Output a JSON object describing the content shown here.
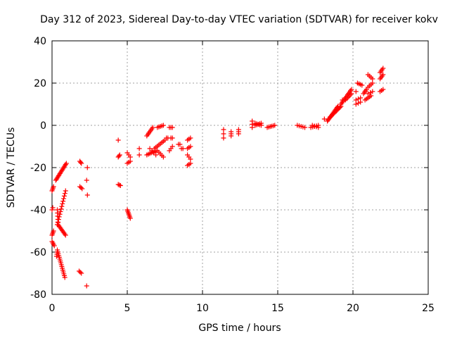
{
  "chart_data": {
    "type": "scatter",
    "title": "Day 312 of 2023, Sidereal Day-to-day VTEC variation (SDTVAR) for receiver kokv",
    "xlabel": "GPS time / hours",
    "ylabel": "SDTVAR / TECUs",
    "xlim": [
      0,
      25
    ],
    "ylim": [
      -80,
      40
    ],
    "xticks": [
      "0",
      "5",
      "10",
      "15",
      "20",
      "25"
    ],
    "xtick_values": [
      0,
      5,
      10,
      15,
      20,
      25
    ],
    "yticks": [
      "-80",
      "-60",
      "-40",
      "-20",
      "0",
      "20",
      "40"
    ],
    "ytick_values": [
      -80,
      -60,
      -40,
      -20,
      0,
      20,
      40
    ],
    "grid": true,
    "marker": "+",
    "color": "#ff0000",
    "series": [
      {
        "name": "SDTVAR",
        "segments": [
          {
            "x0": 0.0,
            "y0": -31,
            "x1": 0.1,
            "y1": -29,
            "n": 4
          },
          {
            "x0": 0.0,
            "y0": -40,
            "x1": 0.05,
            "y1": -39,
            "n": 2
          },
          {
            "x0": 0.0,
            "y0": -52,
            "x1": 0.1,
            "y1": -50,
            "n": 4
          },
          {
            "x0": 0.0,
            "y0": -55,
            "x1": 0.15,
            "y1": -57,
            "n": 4
          },
          {
            "x0": 0.25,
            "y0": -26,
            "x1": 0.95,
            "y1": -18,
            "n": 16
          },
          {
            "x0": 0.35,
            "y0": -40,
            "x1": 0.4,
            "y1": -46,
            "n": 5
          },
          {
            "x0": 0.4,
            "y0": -47,
            "x1": 0.9,
            "y1": -52,
            "n": 10
          },
          {
            "x0": 0.35,
            "y0": -47,
            "x1": 0.9,
            "y1": -31,
            "n": 14
          },
          {
            "x0": 0.35,
            "y0": -59,
            "x1": 0.85,
            "y1": -72,
            "n": 16
          },
          {
            "x0": 0.3,
            "y0": -62,
            "x1": 0.35,
            "y1": -60,
            "n": 3
          },
          {
            "x0": 1.85,
            "y0": -17,
            "x1": 1.95,
            "y1": -18,
            "n": 3
          },
          {
            "x0": 1.85,
            "y0": -29,
            "x1": 2.0,
            "y1": -30,
            "n": 3
          },
          {
            "x0": 1.8,
            "y0": -69,
            "x1": 1.95,
            "y1": -70,
            "n": 3
          },
          {
            "x0": 2.35,
            "y0": -20,
            "x1": 2.35,
            "y1": -20,
            "n": 1
          },
          {
            "x0": 2.3,
            "y0": -26,
            "x1": 2.3,
            "y1": -26,
            "n": 1
          },
          {
            "x0": 2.35,
            "y0": -33,
            "x1": 2.35,
            "y1": -33,
            "n": 1
          },
          {
            "x0": 2.3,
            "y0": -76,
            "x1": 2.3,
            "y1": -76,
            "n": 1
          },
          {
            "x0": 4.4,
            "y0": -7,
            "x1": 4.4,
            "y1": -7,
            "n": 1
          },
          {
            "x0": 4.4,
            "y0": -15,
            "x1": 4.5,
            "y1": -14,
            "n": 3
          },
          {
            "x0": 4.4,
            "y0": -28,
            "x1": 4.55,
            "y1": -28.5,
            "n": 3
          },
          {
            "x0": 5.0,
            "y0": -13,
            "x1": 5.2,
            "y1": -15,
            "n": 3
          },
          {
            "x0": 5.0,
            "y0": -18,
            "x1": 5.2,
            "y1": -17,
            "n": 3
          },
          {
            "x0": 5.0,
            "y0": -40,
            "x1": 5.2,
            "y1": -44,
            "n": 7
          },
          {
            "x0": 5.8,
            "y0": -11,
            "x1": 5.8,
            "y1": -11,
            "n": 1
          },
          {
            "x0": 5.8,
            "y0": -14,
            "x1": 5.8,
            "y1": -14,
            "n": 1
          },
          {
            "x0": 6.3,
            "y0": -5,
            "x1": 6.7,
            "y1": -1,
            "n": 7
          },
          {
            "x0": 6.3,
            "y0": -14,
            "x1": 6.9,
            "y1": -12,
            "n": 7
          },
          {
            "x0": 6.5,
            "y0": -11,
            "x1": 6.9,
            "y1": -14,
            "n": 4
          },
          {
            "x0": 6.8,
            "y0": -11,
            "x1": 7.5,
            "y1": -7,
            "n": 8
          },
          {
            "x0": 7.0,
            "y0": -1,
            "x1": 7.4,
            "y1": 0,
            "n": 5
          },
          {
            "x0": 7.0,
            "y0": -12,
            "x1": 7.4,
            "y1": -15,
            "n": 5
          },
          {
            "x0": 7.6,
            "y0": -6,
            "x1": 7.7,
            "y1": -6,
            "n": 2
          },
          {
            "x0": 7.8,
            "y0": -1,
            "x1": 8.0,
            "y1": -1,
            "n": 3
          },
          {
            "x0": 7.8,
            "y0": -12,
            "x1": 8.0,
            "y1": -10,
            "n": 3
          },
          {
            "x0": 7.9,
            "y0": -6,
            "x1": 8.0,
            "y1": -6,
            "n": 2
          },
          {
            "x0": 8.4,
            "y0": -9,
            "x1": 8.5,
            "y1": -9,
            "n": 2
          },
          {
            "x0": 8.6,
            "y0": -11,
            "x1": 8.7,
            "y1": -11,
            "n": 2
          },
          {
            "x0": 9.0,
            "y0": -7,
            "x1": 9.2,
            "y1": -6,
            "n": 3
          },
          {
            "x0": 9.0,
            "y0": -11,
            "x1": 9.2,
            "y1": -10,
            "n": 3
          },
          {
            "x0": 9.0,
            "y0": -14,
            "x1": 9.2,
            "y1": -16,
            "n": 3
          },
          {
            "x0": 9.0,
            "y0": -19,
            "x1": 9.2,
            "y1": -18,
            "n": 3
          },
          {
            "x0": 11.4,
            "y0": -2,
            "x1": 11.4,
            "y1": -6,
            "n": 3
          },
          {
            "x0": 11.9,
            "y0": -3,
            "x1": 11.9,
            "y1": -5,
            "n": 3
          },
          {
            "x0": 12.4,
            "y0": -2,
            "x1": 12.4,
            "y1": -4,
            "n": 3
          },
          {
            "x0": 13.3,
            "y0": 2,
            "x1": 13.3,
            "y1": -1,
            "n": 3
          },
          {
            "x0": 13.5,
            "y0": 1,
            "x1": 13.9,
            "y1": 0,
            "n": 5
          },
          {
            "x0": 13.5,
            "y0": 0,
            "x1": 13.9,
            "y1": 1,
            "n": 5
          },
          {
            "x0": 14.3,
            "y0": -1,
            "x1": 14.8,
            "y1": 0,
            "n": 6
          },
          {
            "x0": 16.3,
            "y0": 0,
            "x1": 16.8,
            "y1": -1,
            "n": 5
          },
          {
            "x0": 17.2,
            "y0": -1,
            "x1": 17.7,
            "y1": 0,
            "n": 5
          },
          {
            "x0": 17.3,
            "y0": 0,
            "x1": 17.7,
            "y1": -1,
            "n": 4
          },
          {
            "x0": 18.1,
            "y0": 3,
            "x1": 18.1,
            "y1": 3,
            "n": 1
          },
          {
            "x0": 18.3,
            "y0": 2,
            "x1": 19.0,
            "y1": 9,
            "n": 14
          },
          {
            "x0": 18.5,
            "y0": 4,
            "x1": 19.2,
            "y1": 9,
            "n": 12
          },
          {
            "x0": 19.2,
            "y0": 10,
            "x1": 19.9,
            "y1": 17,
            "n": 12
          },
          {
            "x0": 19.5,
            "y0": 12,
            "x1": 19.9,
            "y1": 15,
            "n": 6
          },
          {
            "x0": 19.3,
            "y0": 12,
            "x1": 19.3,
            "y1": 12,
            "n": 1
          },
          {
            "x0": 20.3,
            "y0": 20,
            "x1": 20.6,
            "y1": 19,
            "n": 4
          },
          {
            "x0": 20.2,
            "y0": 16,
            "x1": 20.2,
            "y1": 16,
            "n": 1
          },
          {
            "x0": 20.2,
            "y0": 12,
            "x1": 20.5,
            "y1": 13,
            "n": 3
          },
          {
            "x0": 20.2,
            "y0": 10,
            "x1": 20.5,
            "y1": 11,
            "n": 3
          },
          {
            "x0": 20.7,
            "y0": 15,
            "x1": 20.9,
            "y1": 17,
            "n": 4
          },
          {
            "x0": 20.8,
            "y0": 12,
            "x1": 21.2,
            "y1": 14,
            "n": 5
          },
          {
            "x0": 21.0,
            "y0": 24,
            "x1": 21.3,
            "y1": 22,
            "n": 4
          },
          {
            "x0": 21.0,
            "y0": 18,
            "x1": 21.3,
            "y1": 20,
            "n": 4
          },
          {
            "x0": 21.0,
            "y0": 15,
            "x1": 21.3,
            "y1": 16,
            "n": 3
          },
          {
            "x0": 21.8,
            "y0": 25,
            "x1": 22.0,
            "y1": 27,
            "n": 4
          },
          {
            "x0": 21.8,
            "y0": 22,
            "x1": 22.0,
            "y1": 24,
            "n": 4
          },
          {
            "x0": 21.8,
            "y0": 16,
            "x1": 22.0,
            "y1": 17,
            "n": 3
          }
        ]
      }
    ]
  }
}
